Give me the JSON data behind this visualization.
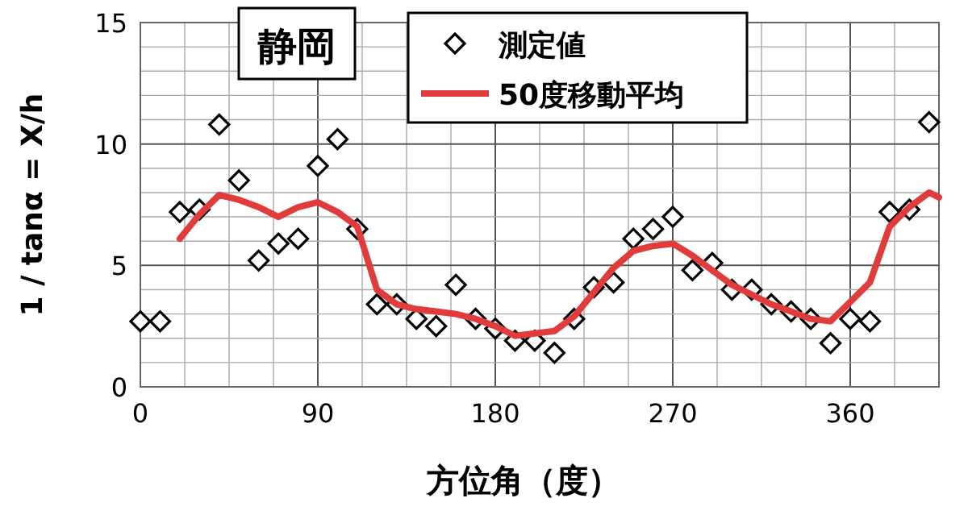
{
  "chart_data": {
    "type": "scatter",
    "title": "静岡",
    "xlabel": "方位角（度）",
    "ylabel": "1 / tanα = X/h",
    "xlim": [
      0,
      405
    ],
    "ylim": [
      0,
      15
    ],
    "xticks": [
      0,
      {
        "value": 22.5,
        "label": null
      },
      {
        "value": 45,
        "label": null
      },
      {
        "value": 67.5,
        "label": null
      },
      90,
      {
        "value": 112.5,
        "label": null
      },
      {
        "value": 135,
        "label": null
      },
      {
        "value": 157.5,
        "label": null
      },
      180,
      {
        "value": 202.5,
        "label": null
      },
      {
        "value": 225,
        "label": null
      },
      {
        "value": 247.5,
        "label": null
      },
      270,
      {
        "value": 292.5,
        "label": null
      },
      {
        "value": 315,
        "label": null
      },
      {
        "value": 337.5,
        "label": null
      },
      360,
      {
        "value": 382.5,
        "label": null
      }
    ],
    "yticks": [
      0,
      {
        "value": 1,
        "label": null
      },
      {
        "value": 2,
        "label": null
      },
      {
        "value": 3,
        "label": null
      },
      {
        "value": 4,
        "label": null
      },
      5,
      {
        "value": 6,
        "label": null
      },
      {
        "value": 7,
        "label": null
      },
      {
        "value": 8,
        "label": null
      },
      {
        "value": 9,
        "label": null
      },
      10,
      {
        "value": 11,
        "label": null
      },
      {
        "value": 12,
        "label": null
      },
      {
        "value": 13,
        "label": null
      },
      {
        "value": 14,
        "label": null
      },
      15
    ],
    "grid": true,
    "legend": "top",
    "series": [
      {
        "name": "測定値",
        "marker": "diamond",
        "color": "#000000",
        "x": [
          0,
          10,
          20,
          30,
          40,
          50,
          60,
          70,
          80,
          90,
          100,
          110,
          120,
          130,
          140,
          150,
          160,
          170,
          180,
          190,
          200,
          210,
          220,
          230,
          240,
          250,
          260,
          270,
          280,
          290,
          300,
          310,
          320,
          330,
          340,
          350,
          360,
          370,
          380,
          390,
          400
        ],
        "values": [
          2.7,
          2.7,
          7.2,
          7.3,
          10.8,
          8.5,
          5.2,
          5.9,
          6.1,
          9.1,
          10.2,
          6.5,
          3.4,
          3.4,
          2.8,
          2.5,
          4.2,
          2.8,
          2.4,
          1.9,
          1.9,
          1.4,
          2.8,
          4.1,
          4.3,
          6.1,
          6.5,
          7.0,
          4.8,
          5.1,
          4.0,
          4.0,
          3.4,
          3.1,
          2.8,
          1.8,
          2.8,
          2.7,
          7.2,
          7.3,
          10.9
        ]
      },
      {
        "name": "50度移動平均",
        "type": "line",
        "marker": "none",
        "line_style": "solid",
        "color": "#e03c3c",
        "x": [
          20,
          30,
          40,
          50,
          60,
          70,
          80,
          90,
          100,
          110,
          120,
          130,
          140,
          150,
          160,
          170,
          180,
          190,
          200,
          210,
          220,
          230,
          240,
          250,
          260,
          270,
          280,
          290,
          300,
          310,
          320,
          330,
          340,
          350,
          360,
          370,
          380,
          390,
          400,
          405
        ],
        "values": [
          6.1,
          7.1,
          7.9,
          7.7,
          7.4,
          7.0,
          7.4,
          7.6,
          7.2,
          6.6,
          4.0,
          3.4,
          3.2,
          3.1,
          3.0,
          2.8,
          2.5,
          2.1,
          2.2,
          2.3,
          2.9,
          3.9,
          4.9,
          5.6,
          5.8,
          5.9,
          5.4,
          4.8,
          4.2,
          3.8,
          3.4,
          3.1,
          2.8,
          2.7,
          3.5,
          4.3,
          6.6,
          7.4,
          8.0,
          7.8
        ]
      }
    ]
  }
}
